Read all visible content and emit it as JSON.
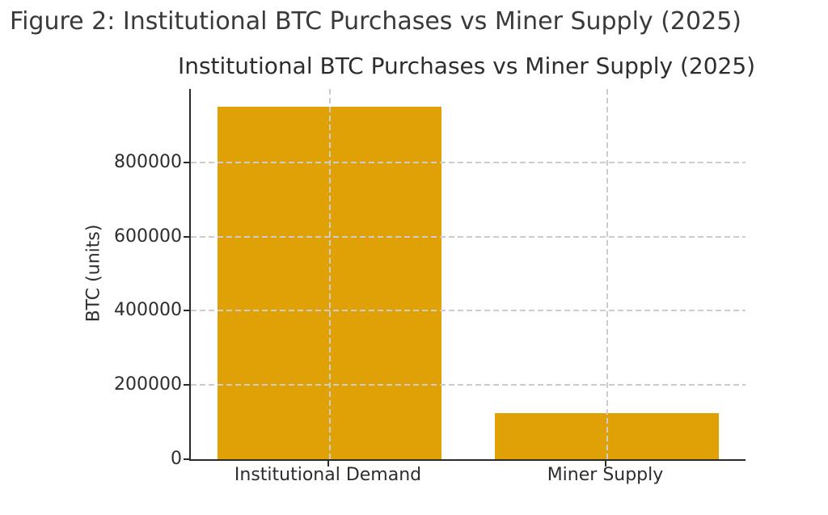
{
  "figure_caption": "Figure 2: Institutional BTC Purchases vs Miner Supply (2025)",
  "chart_data": {
    "type": "bar",
    "title": "Institutional BTC Purchases vs Miner Supply (2025)",
    "title_visible": "Institutional BTC Purchases vs Miner Supply (202",
    "categories": [
      "Institutional Demand",
      "Miner Supply"
    ],
    "values": [
      950000,
      125000
    ],
    "xlabel": "",
    "ylabel": "BTC (units)",
    "yticks": [
      0,
      200000,
      400000,
      600000,
      800000
    ],
    "ytick_labels": [
      "0",
      "200000",
      "400000",
      "600000",
      "800000"
    ],
    "ylim": [
      0,
      997500
    ],
    "grid": true,
    "grid_style": "dashed",
    "grid_over_bars": true,
    "legend": false,
    "colors": {
      "bar": "#e0a106",
      "grid": "#cccccc",
      "axis": "#2a2a2a",
      "text": "#2d2d2d",
      "caption": "#3a3a3a",
      "background": "#ffffff"
    }
  }
}
